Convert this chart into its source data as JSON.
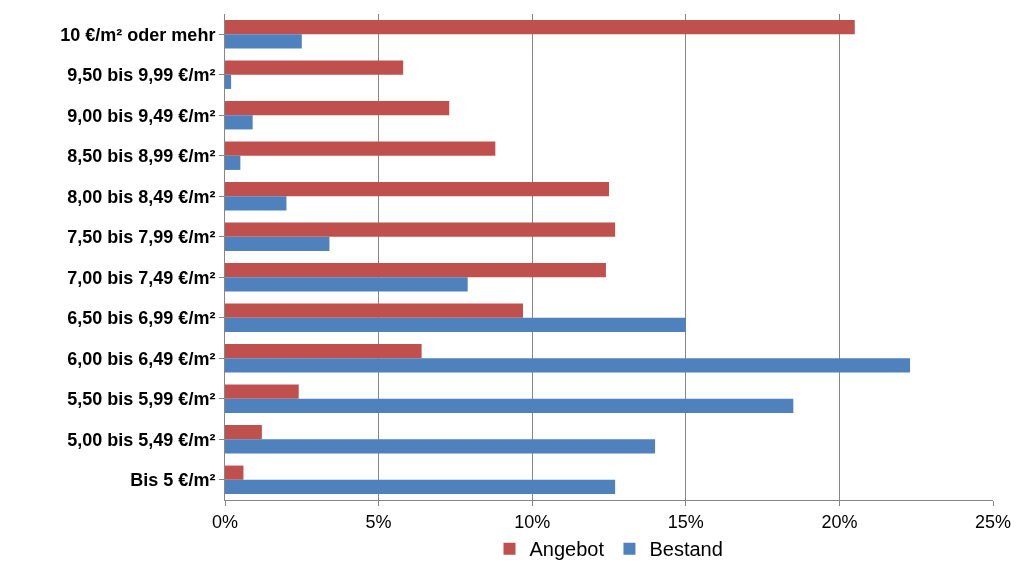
{
  "chart_data": {
    "type": "bar",
    "orientation": "horizontal",
    "categories": [
      "10 €/m² oder mehr",
      "9,50 bis 9,99 €/m²",
      "9,00 bis 9,49 €/m²",
      "8,50 bis 8,99 €/m²",
      "8,00 bis 8,49 €/m²",
      "7,50 bis 7,99 €/m²",
      "7,00 bis 7,49 €/m²",
      "6,50 bis 6,99 €/m²",
      "6,00 bis 6,49 €/m²",
      "5,50 bis 5,99 €/m²",
      "5,00 bis 5,49 €/m²",
      "Bis 5 €/m²"
    ],
    "series": [
      {
        "name": "Angebot",
        "color": "#c0504d",
        "values": [
          20.5,
          5.8,
          7.3,
          8.8,
          12.5,
          12.7,
          12.4,
          9.7,
          6.4,
          2.4,
          1.2,
          0.6
        ]
      },
      {
        "name": "Bestand",
        "color": "#4f81bd",
        "values": [
          2.5,
          0.2,
          0.9,
          0.5,
          2.0,
          3.4,
          7.9,
          15.0,
          22.3,
          18.5,
          14.0,
          12.7
        ]
      }
    ],
    "xlim": [
      0,
      25
    ],
    "xticks": [
      {
        "value": 0,
        "label": "0%"
      },
      {
        "value": 5,
        "label": "5%"
      },
      {
        "value": 10,
        "label": "10%"
      },
      {
        "value": 15,
        "label": "15%"
      },
      {
        "value": 20,
        "label": "20%"
      },
      {
        "value": 25,
        "label": "25%"
      }
    ],
    "grid": "x",
    "legend": "bottom"
  }
}
